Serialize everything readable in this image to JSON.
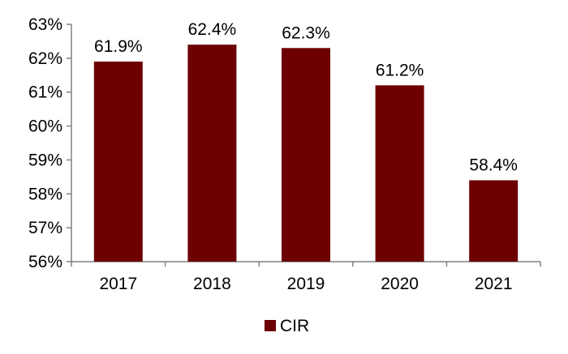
{
  "chart_data": {
    "type": "bar",
    "title": "",
    "xlabel": "",
    "ylabel": "",
    "categories": [
      "2017",
      "2018",
      "2019",
      "2020",
      "2021"
    ],
    "series": [
      {
        "name": "CIR",
        "values": [
          61.9,
          62.4,
          62.3,
          61.2,
          58.4
        ],
        "value_labels": [
          "61.9%",
          "62.4%",
          "62.3%",
          "61.2%",
          "58.4%"
        ],
        "color": "#6d0000"
      }
    ],
    "ylim": [
      56,
      63
    ],
    "yticks": [
      56,
      57,
      58,
      59,
      60,
      61,
      62,
      63
    ],
    "ytick_labels": [
      "56%",
      "57%",
      "58%",
      "59%",
      "60%",
      "61%",
      "62%",
      "63%"
    ],
    "grid": false,
    "legend": "bottom-center"
  }
}
